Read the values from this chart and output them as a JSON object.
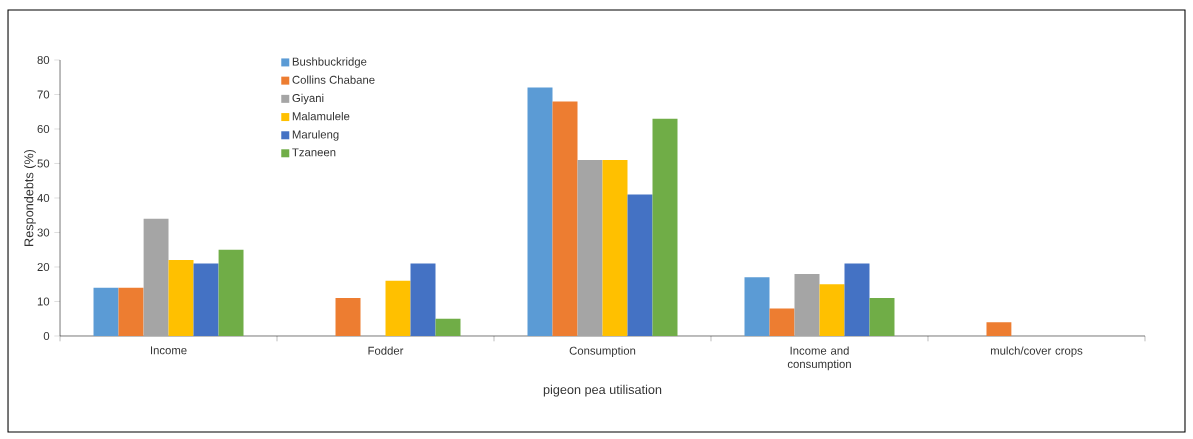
{
  "chart_data": {
    "type": "bar",
    "xlabel": "pigeon pea utilisation",
    "ylabel": "Respondebts (%)",
    "categories": [
      "Income",
      "Fodder",
      "Consumption",
      "Income and consumption",
      "mulch/cover crops"
    ],
    "series": [
      {
        "name": "Bushbuckridge",
        "color": "#5b9bd5",
        "values": [
          14,
          0,
          72,
          17,
          0
        ]
      },
      {
        "name": "Collins Chabane",
        "color": "#ed7d31",
        "values": [
          14,
          11,
          68,
          8,
          4
        ]
      },
      {
        "name": "Giyani",
        "color": "#a5a5a5",
        "values": [
          34,
          0,
          51,
          18,
          0
        ]
      },
      {
        "name": "Malamulele",
        "color": "#ffc000",
        "values": [
          22,
          16,
          51,
          15,
          0
        ]
      },
      {
        "name": "Maruleng",
        "color": "#4472c4",
        "values": [
          21,
          21,
          41,
          21,
          0
        ]
      },
      {
        "name": "Tzaneen",
        "color": "#70ad47",
        "values": [
          25,
          5,
          63,
          11,
          0
        ]
      }
    ],
    "ylim": [
      0,
      80
    ],
    "yticks": [
      0,
      10,
      20,
      30,
      40,
      50,
      60,
      70,
      80
    ],
    "legend": "top left"
  }
}
